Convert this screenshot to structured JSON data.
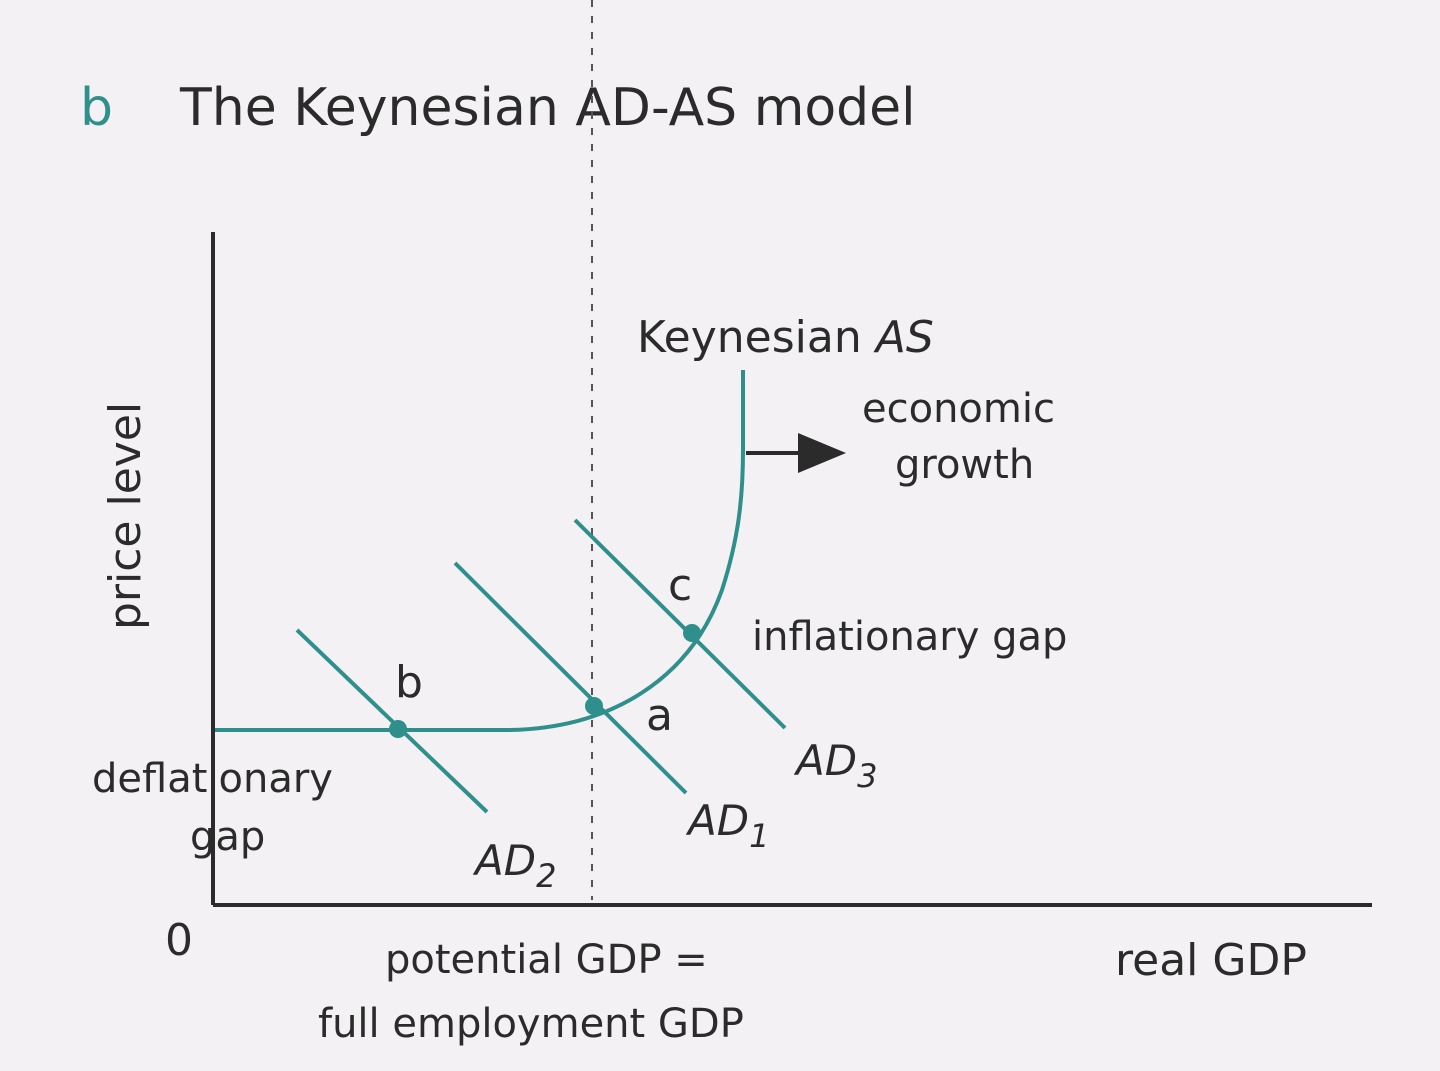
{
  "figure": {
    "letter": "b",
    "title": "The Keynesian AD-AS model"
  },
  "axes": {
    "y_label": "price level",
    "x_label": "real GDP",
    "origin": "0"
  },
  "curves": {
    "as_label_main": "Keynesian ",
    "as_label_italic": "AS",
    "ad1": {
      "main": "AD",
      "sub": "1"
    },
    "ad2": {
      "main": "AD",
      "sub": "2"
    },
    "ad3": {
      "main": "AD",
      "sub": "3"
    }
  },
  "points": {
    "a": "a",
    "b": "b",
    "c": "c"
  },
  "annotations": {
    "growth_line1": "economic",
    "growth_line2": "growth",
    "inflationary_gap": "inflationary gap",
    "deflationary_line1": "deflationary",
    "deflationary_line2": "gap",
    "potential_line1": "potential GDP =",
    "potential_line2": "full employment GDP"
  },
  "colors": {
    "curve": "#2f8f8c",
    "axis": "#2b2b2b",
    "text": "#2b2b2b",
    "accent": "#2f8f8c"
  }
}
